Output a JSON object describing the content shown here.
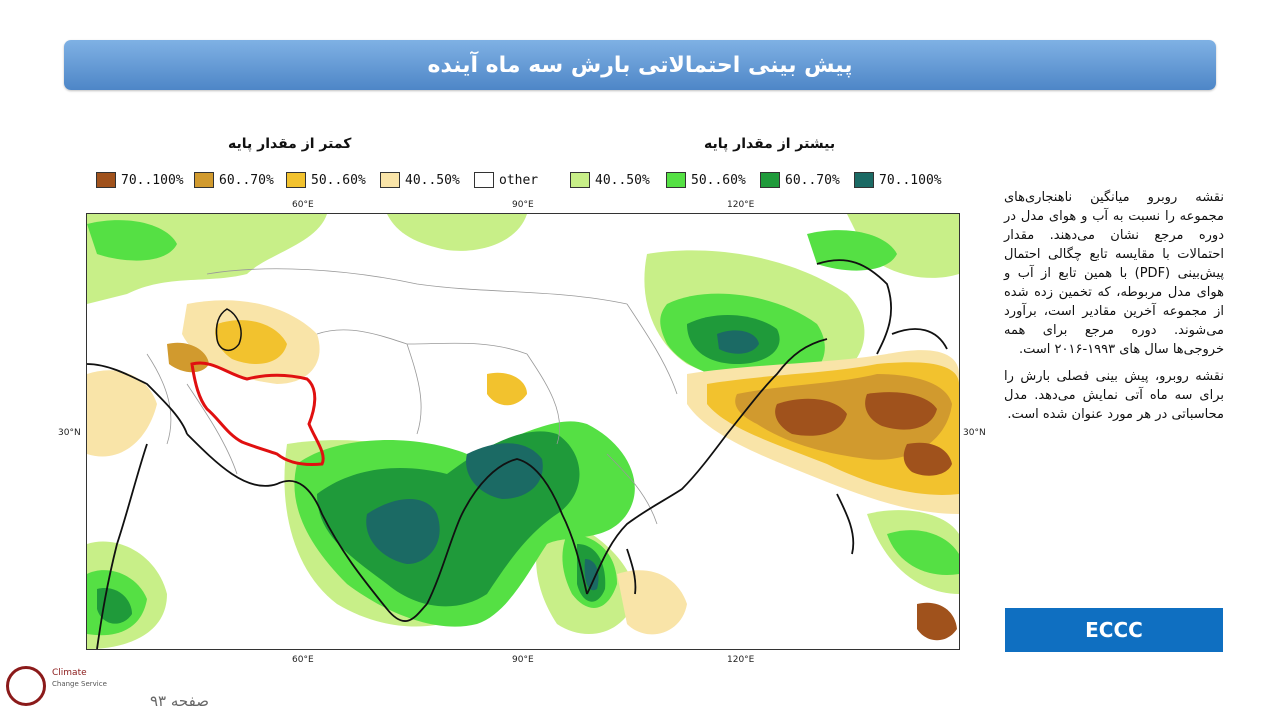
{
  "title": "پیش بینی احتمالاتی بارش سه ماه آینده",
  "legend_headers": {
    "below": "کمتر از مقدار پایه",
    "above": "بیشتر از مقدار پایه"
  },
  "legend": [
    {
      "label": "70..100%",
      "color": "#a0521c"
    },
    {
      "label": "60..70%",
      "color": "#d19a2e"
    },
    {
      "label": "50..60%",
      "color": "#f2c22e"
    },
    {
      "label": "40..50%",
      "color": "#f9e4a8"
    },
    {
      "label": "other",
      "color": "#ffffff"
    },
    {
      "label": "40..50%",
      "color": "#c8ef88"
    },
    {
      "label": "50..60%",
      "color": "#55e044"
    },
    {
      "label": "60..70%",
      "color": "#1f9a3a"
    },
    {
      "label": "70..100%",
      "color": "#1b6a64"
    }
  ],
  "map_ticks": {
    "top": [
      "60°E",
      "90°E",
      "120°E"
    ],
    "bottom": [
      "60°E",
      "90°E",
      "120°E"
    ],
    "left": "30°N",
    "right": "30°N"
  },
  "description": [
    "نقشه روبرو میانگین ناهنجاری‌های مجموعه را نسبت به آب و هوای مدل در دوره مرجع نشان می‌دهند. مقدار احتمالات با مقایسه تابع چگالی احتمال پیش‌بینی (PDF) با همین تابع از آب و هوای مدل مربوطه، که تخمین زده شده از مجموعه آخرین مقادیر است، برآورد می‌شوند. دوره مرجع برای همه خروجی‌ها سال های ۱۹۹۳-۲۰۱۶ است.",
    "نقشه روبرو، پیش بینی فصلی بارش را برای سه ماه آتی نمایش می‌دهد. مدل محاسباتی در هر مورد عنوان شده است."
  ],
  "model_label": "ECCC",
  "logo": {
    "line1": "Climate",
    "line2": "Change Service"
  },
  "page_label": "صفحه ۹۳"
}
